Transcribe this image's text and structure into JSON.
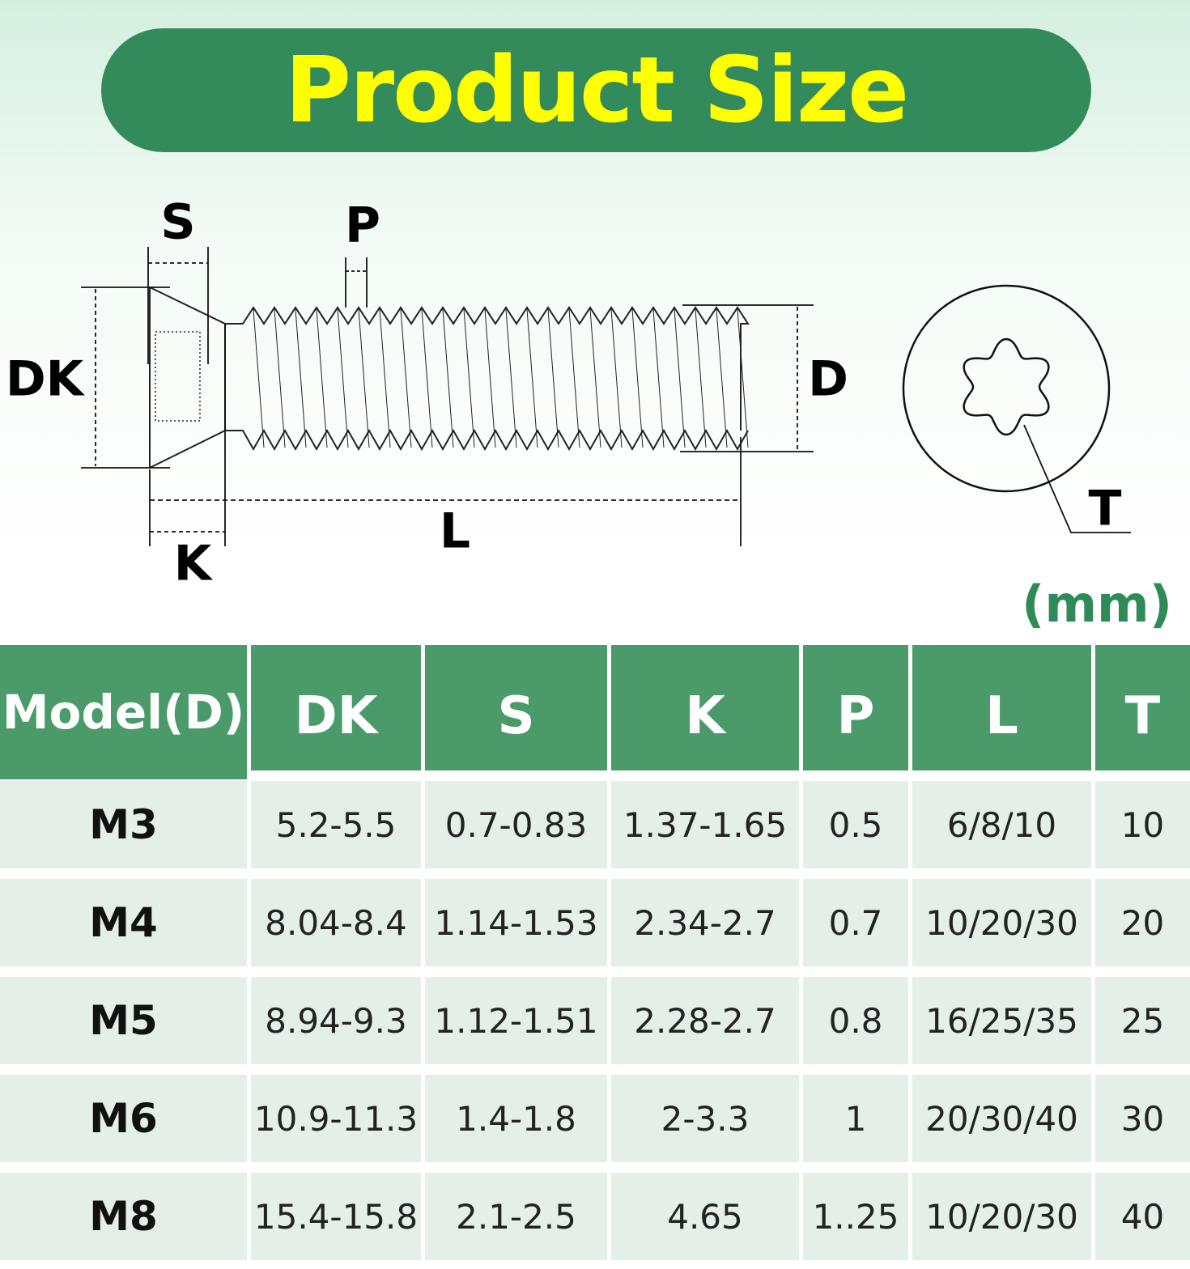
{
  "header": {
    "title": "Product Size"
  },
  "diagram": {
    "labels": {
      "S": "S",
      "P": "P",
      "DK": "DK",
      "D": "D",
      "K": "K",
      "L": "L",
      "T": "T"
    },
    "unit": "(mm)"
  },
  "table": {
    "headers": [
      "Model(D)",
      "DK",
      "S",
      "K",
      "P",
      "L",
      "T"
    ],
    "rows": [
      [
        "M3",
        "5.2-5.5",
        "0.7-0.83",
        "1.37-1.65",
        "0.5",
        "6/8/10",
        "10"
      ],
      [
        "M4",
        "8.04-8.4",
        "1.14-1.53",
        "2.34-2.7",
        "0.7",
        "10/20/30",
        "20"
      ],
      [
        "M5",
        "8.94-9.3",
        "1.12-1.51",
        "2.28-2.7",
        "0.8",
        "16/25/35",
        "25"
      ],
      [
        "M6",
        "10.9-11.3",
        "1.4-1.8",
        "2-3.3",
        "1",
        "20/30/40",
        "30"
      ],
      [
        "M8",
        "15.4-15.8",
        "2.1-2.5",
        "4.65",
        "1..25",
        "10/20/30",
        "40"
      ]
    ]
  }
}
